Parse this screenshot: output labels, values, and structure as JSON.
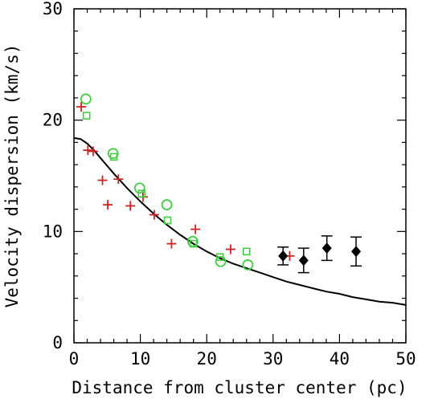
{
  "chart_data": {
    "type": "scatter",
    "title": "",
    "xlabel": "Distance from cluster center (pc)",
    "ylabel": "Velocity dispersion (km/s)",
    "xlim": [
      0,
      50
    ],
    "ylim": [
      0,
      30
    ],
    "x_ticks": [
      0,
      10,
      20,
      30,
      40,
      50
    ],
    "y_ticks": [
      0,
      10,
      20,
      30
    ],
    "x_tick_labels": [
      "0",
      "10",
      "20",
      "30",
      "40",
      "50"
    ],
    "y_tick_labels": [
      "0",
      "10",
      "20",
      "30"
    ],
    "grid": false,
    "legend": "none",
    "series": [
      {
        "marker": "plus",
        "color": "#cc2222",
        "points": [
          [
            1.1,
            21.2
          ],
          [
            2.1,
            17.3
          ],
          [
            2.9,
            17.2
          ],
          [
            4.3,
            14.6
          ],
          [
            5.1,
            12.4
          ],
          [
            6.7,
            14.7
          ],
          [
            8.5,
            12.3
          ],
          [
            10.4,
            13.1
          ],
          [
            12.1,
            11.5
          ],
          [
            14.7,
            8.9
          ],
          [
            18.3,
            10.2
          ],
          [
            23.6,
            8.4
          ],
          [
            32.5,
            7.8
          ]
        ]
      },
      {
        "marker": "circle",
        "color": "#44cc44",
        "points": [
          [
            1.8,
            21.9
          ],
          [
            5.9,
            17.0
          ],
          [
            9.9,
            13.9
          ],
          [
            14.0,
            12.4
          ],
          [
            17.9,
            9.1
          ],
          [
            22.1,
            7.3
          ],
          [
            26.2,
            7.0
          ]
        ]
      },
      {
        "marker": "square",
        "color": "#44cc44",
        "points": [
          [
            1.9,
            20.4
          ],
          [
            6.0,
            16.7
          ],
          [
            10.2,
            13.4
          ],
          [
            14.1,
            11.0
          ],
          [
            18.0,
            8.9
          ],
          [
            22.0,
            7.7
          ],
          [
            26.0,
            8.2
          ]
        ]
      },
      {
        "marker": "diamond",
        "color": "#000000",
        "error_bars": true,
        "points": [
          [
            31.5,
            7.8,
            0.8
          ],
          [
            34.6,
            7.4,
            1.1
          ],
          [
            38.1,
            8.5,
            1.1
          ],
          [
            42.5,
            8.2,
            1.3
          ]
        ]
      }
    ],
    "model_curve": {
      "color": "#000000",
      "points": [
        [
          0,
          18.4
        ],
        [
          1,
          18.3
        ],
        [
          2,
          17.9
        ],
        [
          3,
          17.3
        ],
        [
          4,
          16.6
        ],
        [
          5,
          15.9
        ],
        [
          6,
          15.2
        ],
        [
          8,
          13.9
        ],
        [
          10,
          12.7
        ],
        [
          12,
          11.6
        ],
        [
          14,
          10.6
        ],
        [
          16,
          9.7
        ],
        [
          18,
          8.9
        ],
        [
          20,
          8.2
        ],
        [
          22,
          7.6
        ],
        [
          24,
          7.1
        ],
        [
          26,
          6.7
        ],
        [
          28,
          6.3
        ],
        [
          30,
          5.9
        ],
        [
          32,
          5.5
        ],
        [
          34,
          5.2
        ],
        [
          36,
          4.9
        ],
        [
          38,
          4.6
        ],
        [
          40,
          4.4
        ],
        [
          42,
          4.1
        ],
        [
          44,
          3.9
        ],
        [
          46,
          3.7
        ],
        [
          48,
          3.6
        ],
        [
          50,
          3.4
        ]
      ]
    }
  }
}
